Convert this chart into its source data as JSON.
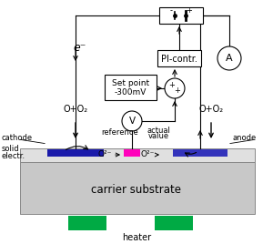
{
  "bg_color": "#ffffff",
  "substrate_color": "#c8c8c8",
  "electrolyte_color": "#e0e0e0",
  "cathode_color": "#1a1aaa",
  "anode_color": "#3333bb",
  "reference_color": "#ff00bb",
  "heater_color": "#00aa44",
  "text_color": "#000000",
  "carrier_label": "carrier substrate",
  "heater_label": "heater",
  "cathode_label": "cathode",
  "anode_label": "anode",
  "solid_electr_label1": "solid",
  "solid_electr_label2": "electr.",
  "reference_label": "reference",
  "actual_value_label1": "actual",
  "actual_value_label2": "value",
  "pi_label": "PI-contr.",
  "setpoint_label1": "Set point",
  "setpoint_label2": "-300mV",
  "electron_label": "e⁻",
  "o_plus_o2_left": "O+O₂",
  "o_plus_o2_right": "O+O₂",
  "o2minus_left": "O²⁻",
  "o2minus_right": "O²⁻",
  "v_label": "V",
  "a_label": "A"
}
